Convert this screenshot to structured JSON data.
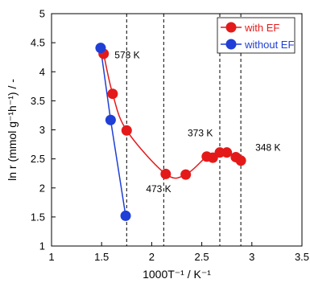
{
  "chart_data": {
    "type": "scatter",
    "xlabel": "1000T⁻¹ / K⁻¹",
    "ylabel": "ln r (mmol g⁻¹h⁻¹) / -",
    "xlim": [
      1,
      3.5
    ],
    "ylim": [
      1,
      5
    ],
    "x_ticks": [
      "1",
      "1.5",
      "2",
      "2.5",
      "3",
      "3.5"
    ],
    "y_ticks": [
      "1",
      "1.5",
      "2",
      "2.5",
      "3",
      "3.5",
      "4",
      "4.5",
      "5"
    ],
    "grid": false,
    "legend_position": "top-right",
    "series": [
      {
        "name": "with EF",
        "color": "#e41a1a",
        "line": "smooth",
        "x": [
          1.52,
          1.61,
          1.75,
          2.14,
          2.34,
          2.55,
          2.61,
          2.68,
          2.75,
          2.84,
          2.89
        ],
        "y": [
          4.31,
          3.62,
          2.99,
          2.24,
          2.23,
          2.54,
          2.52,
          2.61,
          2.61,
          2.53,
          2.47
        ]
      },
      {
        "name": "without EF",
        "color": "#1f3fd6",
        "line": "straight",
        "x": [
          1.49,
          1.59,
          1.74
        ],
        "y": [
          4.41,
          3.17,
          1.52
        ]
      }
    ],
    "reference_lines": [
      {
        "x": 1.75,
        "label": "573 K"
      },
      {
        "x": 2.12,
        "label": "473 K"
      },
      {
        "x": 2.68,
        "label": "373 K"
      },
      {
        "x": 2.89,
        "label": "348 K"
      }
    ]
  }
}
